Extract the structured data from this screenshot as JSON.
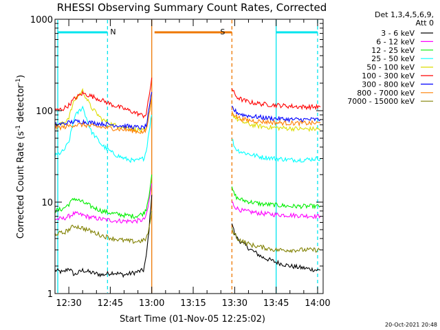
{
  "chart_data": {
    "type": "line",
    "title": "RHESSI Observing Summary Count Rates, Corrected",
    "xlabel": "Start Time (01-Nov-05 12:25:02)",
    "ylabel_main": "Corrected Count Rate (s",
    "ylabel_sup1": "-1",
    "ylabel_mid": " detector",
    "ylabel_sup2": "-1",
    "ylabel_end": ")",
    "yscale": "log",
    "ylim": [
      1,
      1000
    ],
    "xlim": [
      "12:25",
      "14:02"
    ],
    "x_ticks": [
      "12:30",
      "12:45",
      "13:00",
      "13:15",
      "13:30",
      "13:45",
      "14:00"
    ],
    "y_ticks": [
      "1",
      "10",
      "100",
      "1000"
    ],
    "grid": false,
    "legend_position": "right",
    "legend_header": [
      "Det 1,3,4,5,6,9,",
      "Att 0"
    ],
    "footer_date": "20-Oct-2021 20:48",
    "flags": [
      {
        "label": "N",
        "color": "#00e5ee",
        "start": "12:26",
        "end": "12:44"
      },
      {
        "label": "S",
        "color": "#ee7700",
        "start": "13:01",
        "end": "13:29"
      },
      {
        "label": "",
        "color": "#00e5ee",
        "start": "13:45",
        "end": "14:00"
      }
    ],
    "marker_lines": [
      {
        "x": "12:26",
        "color": "#00e5ee",
        "style": "solid"
      },
      {
        "x": "12:44",
        "color": "#00e5ee",
        "style": "dashed"
      },
      {
        "x": "13:00",
        "color": "#ee7700",
        "style": "solid"
      },
      {
        "x": "13:29",
        "color": "#ee7700",
        "style": "dashed"
      },
      {
        "x": "13:45",
        "color": "#00e5ee",
        "style": "solid"
      },
      {
        "x": "14:00",
        "color": "#00e5ee",
        "style": "dashed"
      }
    ],
    "segment_times": [
      [
        "12:25",
        "12:28",
        "12:30",
        "12:32",
        "12:35",
        "12:38",
        "12:42",
        "12:46",
        "12:50",
        "12:54",
        "12:57",
        "12:58",
        "12:59",
        "13:00"
      ],
      [
        "13:29",
        "13:30",
        "13:31",
        "13:33",
        "13:36",
        "13:40",
        "13:45",
        "13:50",
        "13:55",
        "14:00",
        "14:01"
      ]
    ],
    "series": [
      {
        "name": "3 - 6 keV",
        "color": "#000000",
        "segments": [
          [
            1.8,
            1.7,
            1.9,
            1.6,
            1.8,
            1.7,
            1.6,
            1.7,
            1.6,
            1.7,
            1.8,
            2.5,
            5,
            12
          ],
          [
            6,
            4.5,
            4,
            3.5,
            3,
            2.5,
            2.2,
            2,
            1.9,
            1.8,
            1.8
          ]
        ]
      },
      {
        "name": "6 - 12 keV",
        "color": "#ff00ff",
        "segments": [
          [
            6.5,
            6.6,
            7,
            7.5,
            7.2,
            6.8,
            6.5,
            6.3,
            6.2,
            6.2,
            6.4,
            7,
            10,
            16
          ],
          [
            10,
            9,
            8.5,
            8,
            7.8,
            7.5,
            7.3,
            7.2,
            7.1,
            7,
            7
          ]
        ]
      },
      {
        "name": "12 - 25 keV",
        "color": "#00ee00",
        "segments": [
          [
            8,
            8.5,
            9.5,
            11,
            10,
            9,
            8,
            7.5,
            7.2,
            7,
            7.5,
            8.5,
            12,
            20
          ],
          [
            14,
            12,
            11,
            10.5,
            10,
            9.5,
            9.3,
            9,
            9,
            9,
            9
          ]
        ]
      },
      {
        "name": "25 - 50 keV",
        "color": "#00ffff",
        "segments": [
          [
            32,
            36,
            45,
            85,
            110,
            60,
            42,
            34,
            30,
            28,
            30,
            36,
            60,
            90
          ],
          [
            50,
            40,
            37,
            35,
            33,
            31,
            30,
            29,
            29,
            30,
            30
          ]
        ]
      },
      {
        "name": "50 - 100 keV",
        "color": "#dddd00",
        "segments": [
          [
            70,
            72,
            85,
            130,
            165,
            110,
            80,
            70,
            66,
            62,
            60,
            62,
            90,
            140
          ],
          [
            95,
            85,
            80,
            75,
            70,
            67,
            65,
            64,
            63,
            63,
            63
          ]
        ]
      },
      {
        "name": "100 - 300 keV",
        "color": "#ff0000",
        "segments": [
          [
            100,
            105,
            115,
            135,
            155,
            145,
            130,
            115,
            105,
            95,
            88,
            92,
            140,
            230
          ],
          [
            175,
            150,
            140,
            130,
            123,
            118,
            115,
            112,
            110,
            110,
            110
          ]
        ]
      },
      {
        "name": "300 - 800 keV",
        "color": "#0000ff",
        "segments": [
          [
            70,
            72,
            74,
            76,
            76,
            74,
            72,
            70,
            68,
            66,
            65,
            68,
            100,
            160
          ],
          [
            110,
            100,
            95,
            90,
            87,
            84,
            82,
            80,
            80,
            80,
            80
          ]
        ]
      },
      {
        "name": "800 - 7000 keV",
        "color": "#ff7f00",
        "segments": [
          [
            65,
            66,
            68,
            70,
            70,
            68,
            66,
            64,
            62,
            60,
            58,
            60,
            90,
            140
          ],
          [
            100,
            90,
            85,
            80,
            78,
            76,
            74,
            73,
            73,
            73,
            73
          ]
        ]
      },
      {
        "name": "7000 - 15000 keV",
        "color": "#808000",
        "segments": [
          [
            4.5,
            4.6,
            5,
            5.5,
            5.2,
            4.8,
            4.3,
            4,
            3.8,
            3.7,
            3.8,
            4,
            5,
            8
          ],
          [
            5,
            4.5,
            4,
            3.7,
            3.4,
            3.2,
            3,
            3,
            3,
            3,
            3
          ]
        ]
      }
    ]
  }
}
